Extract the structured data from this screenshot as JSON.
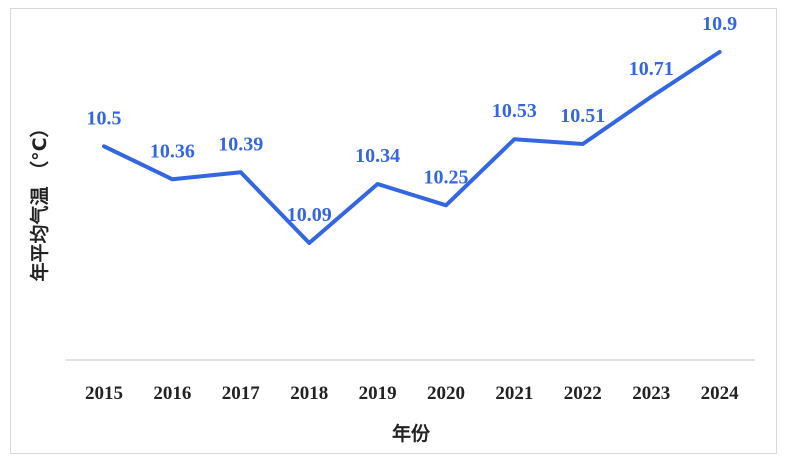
{
  "chart_data": {
    "type": "line",
    "title": "",
    "xlabel": "年份",
    "ylabel": "年平均气温 （°C）",
    "categories": [
      "2015",
      "2016",
      "2017",
      "2018",
      "2019",
      "2020",
      "2021",
      "2022",
      "2023",
      "2024"
    ],
    "series": [
      {
        "values": [
          10.5,
          10.36,
          10.39,
          10.09,
          10.34,
          10.25,
          10.53,
          10.51,
          10.71,
          10.9
        ]
      }
    ],
    "data_labels": [
      "10.5",
      "10.36",
      "10.39",
      "10.09",
      "10.34",
      "10.25",
      "10.53",
      "10.51",
      "10.71",
      "10.9"
    ],
    "ylim": [
      9.5,
      11.0
    ],
    "grid": false,
    "line_color": "#3366e0",
    "drop_line_color": "#c5d3ee",
    "axis_color": "#d9d9d9"
  }
}
